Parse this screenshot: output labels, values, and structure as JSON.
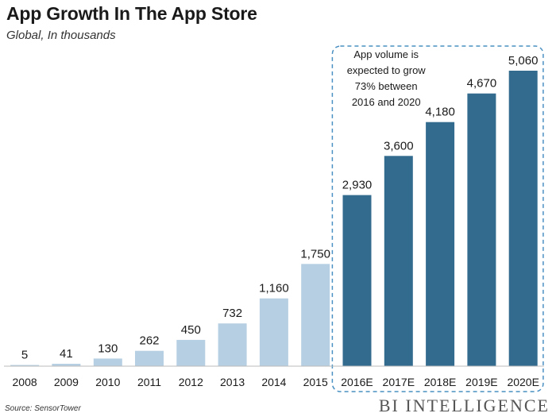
{
  "header": {
    "title": "App Growth In The App Store",
    "subtitle": "Global, In thousands"
  },
  "annotation": {
    "lines": [
      "App volume is",
      "expected to grow",
      "73% between",
      "2016 and 2020"
    ]
  },
  "footer": {
    "source": "Source: SensorTower",
    "logo": "BI INTELLIGENCE"
  },
  "colors": {
    "actual": "#b7cfe3",
    "forecast": "#336b8f",
    "dashed_box": "#4a90c2",
    "axis": "#bbbbbb"
  },
  "chart_data": {
    "type": "bar",
    "title": "App Growth In The App Store",
    "subtitle": "Global, In thousands",
    "xlabel": "",
    "ylabel": "",
    "ylim": [
      0,
      5060
    ],
    "grid": false,
    "categories": [
      "2008",
      "2009",
      "2010",
      "2011",
      "2012",
      "2013",
      "2014",
      "2015",
      "2016E",
      "2017E",
      "2018E",
      "2019E",
      "2020E"
    ],
    "values": [
      5,
      41,
      130,
      262,
      450,
      732,
      1160,
      1750,
      2930,
      3600,
      4180,
      4670,
      5060
    ],
    "value_labels": [
      "5",
      "41",
      "130",
      "262",
      "450",
      "732",
      "1,160",
      "1,750",
      "2,930",
      "3,600",
      "4,180",
      "4,670",
      "5,060"
    ],
    "series_type": [
      "actual",
      "actual",
      "actual",
      "actual",
      "actual",
      "actual",
      "actual",
      "actual",
      "forecast",
      "forecast",
      "forecast",
      "forecast",
      "forecast"
    ]
  }
}
